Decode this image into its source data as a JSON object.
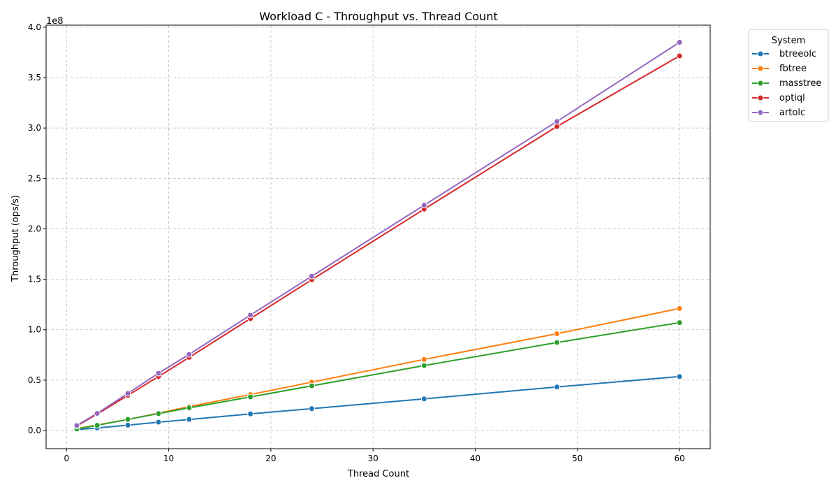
{
  "chart_data": {
    "type": "line",
    "title": "Workload C - Throughput vs. Thread Count",
    "xlabel": "Thread Count",
    "ylabel": "Throughput (ops/s)",
    "y_offset_label": "1e8",
    "xlim": [
      -2,
      63
    ],
    "ylim": [
      -18000000,
      402000000
    ],
    "x_ticks": [
      0,
      10,
      20,
      30,
      40,
      50,
      60
    ],
    "x_tick_labels": [
      "0",
      "10",
      "20",
      "30",
      "40",
      "50",
      "60"
    ],
    "y_ticks": [
      0,
      50000000,
      100000000,
      150000000,
      200000000,
      250000000,
      300000000,
      350000000,
      400000000
    ],
    "y_tick_labels": [
      "0.0",
      "0.5",
      "1.0",
      "1.5",
      "2.0",
      "2.5",
      "3.0",
      "3.5",
      "4.0"
    ],
    "grid": true,
    "legend": {
      "title": "System",
      "placement": "outside-top-right"
    },
    "x": [
      1,
      3,
      6,
      9,
      12,
      18,
      24,
      35,
      48,
      60
    ],
    "series": [
      {
        "name": "btreeolc",
        "color": "#1f77b4",
        "values": [
          1000000,
          2500000,
          5300000,
          8300000,
          11000000,
          16500000,
          21700000,
          31400000,
          43200000,
          53500000
        ]
      },
      {
        "name": "fbtree",
        "color": "#ff7f0e",
        "values": [
          1800000,
          5500000,
          11000000,
          17200000,
          23700000,
          35700000,
          48000000,
          70500000,
          96000000,
          121000000
        ]
      },
      {
        "name": "masstree",
        "color": "#2ca02c",
        "values": [
          1500000,
          5200000,
          11000000,
          16800000,
          22500000,
          33300000,
          44300000,
          64400000,
          87300000,
          107000000
        ]
      },
      {
        "name": "optiql",
        "color": "#d62728",
        "values": [
          4500000,
          16300000,
          34800000,
          53500000,
          72500000,
          111000000,
          149500000,
          219500000,
          301500000,
          371500000
        ]
      },
      {
        "name": "artolc",
        "color": "#9467bd",
        "values": [
          5000000,
          17000000,
          36800000,
          56800000,
          75500000,
          114500000,
          153000000,
          223500000,
          306500000,
          385000000
        ]
      }
    ]
  }
}
